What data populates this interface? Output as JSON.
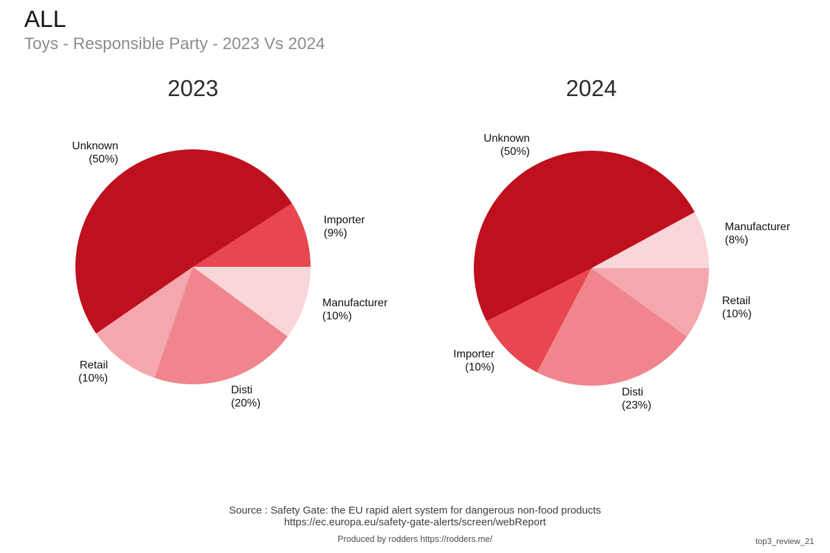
{
  "header": {
    "title": "ALL",
    "subtitle": "Toys - Responsible Party - 2023 Vs 2024"
  },
  "chart_data": [
    {
      "type": "pie",
      "title": "2023",
      "slices": [
        {
          "label": "Unknown",
          "pct": 50,
          "pct_text": "(50%)",
          "color": "#bf101e"
        },
        {
          "label": "Importer",
          "pct": 9,
          "pct_text": "(9%)",
          "color": "#e8474f"
        },
        {
          "label": "Manufacturer",
          "pct": 10,
          "pct_text": "(10%)",
          "color": "#f9d6da"
        },
        {
          "label": "Disti",
          "pct": 20,
          "pct_text": "(20%)",
          "color": "#f0858d"
        },
        {
          "label": "Retail",
          "pct": 10,
          "pct_text": "(10%)",
          "color": "#f4a8ae"
        }
      ],
      "draw_order_clockwise_from_east": [
        2,
        3,
        4,
        0,
        1
      ],
      "legend_position": "labels-around-pie"
    },
    {
      "type": "pie",
      "title": "2024",
      "slices": [
        {
          "label": "Unknown",
          "pct": 50,
          "pct_text": "(50%)",
          "color": "#bf101e"
        },
        {
          "label": "Manufacturer",
          "pct": 8,
          "pct_text": "(8%)",
          "color": "#f9d6da"
        },
        {
          "label": "Retail",
          "pct": 10,
          "pct_text": "(10%)",
          "color": "#f4a8ae"
        },
        {
          "label": "Disti",
          "pct": 23,
          "pct_text": "(23%)",
          "color": "#f0858d"
        },
        {
          "label": "Importer",
          "pct": 10,
          "pct_text": "(10%)",
          "color": "#e8474f"
        }
      ],
      "draw_order_clockwise_from_east": [
        2,
        3,
        4,
        0,
        1
      ],
      "legend_position": "labels-around-pie"
    }
  ],
  "footer": {
    "source_line1": "Source : Safety Gate: the EU rapid alert system for dangerous non-food products",
    "source_line2": "https://ec.europa.eu/safety-gate-alerts/screen/webReport",
    "produced_by": "Produced by rodders https://rodders.me/",
    "watermark": "top3_review_21"
  }
}
